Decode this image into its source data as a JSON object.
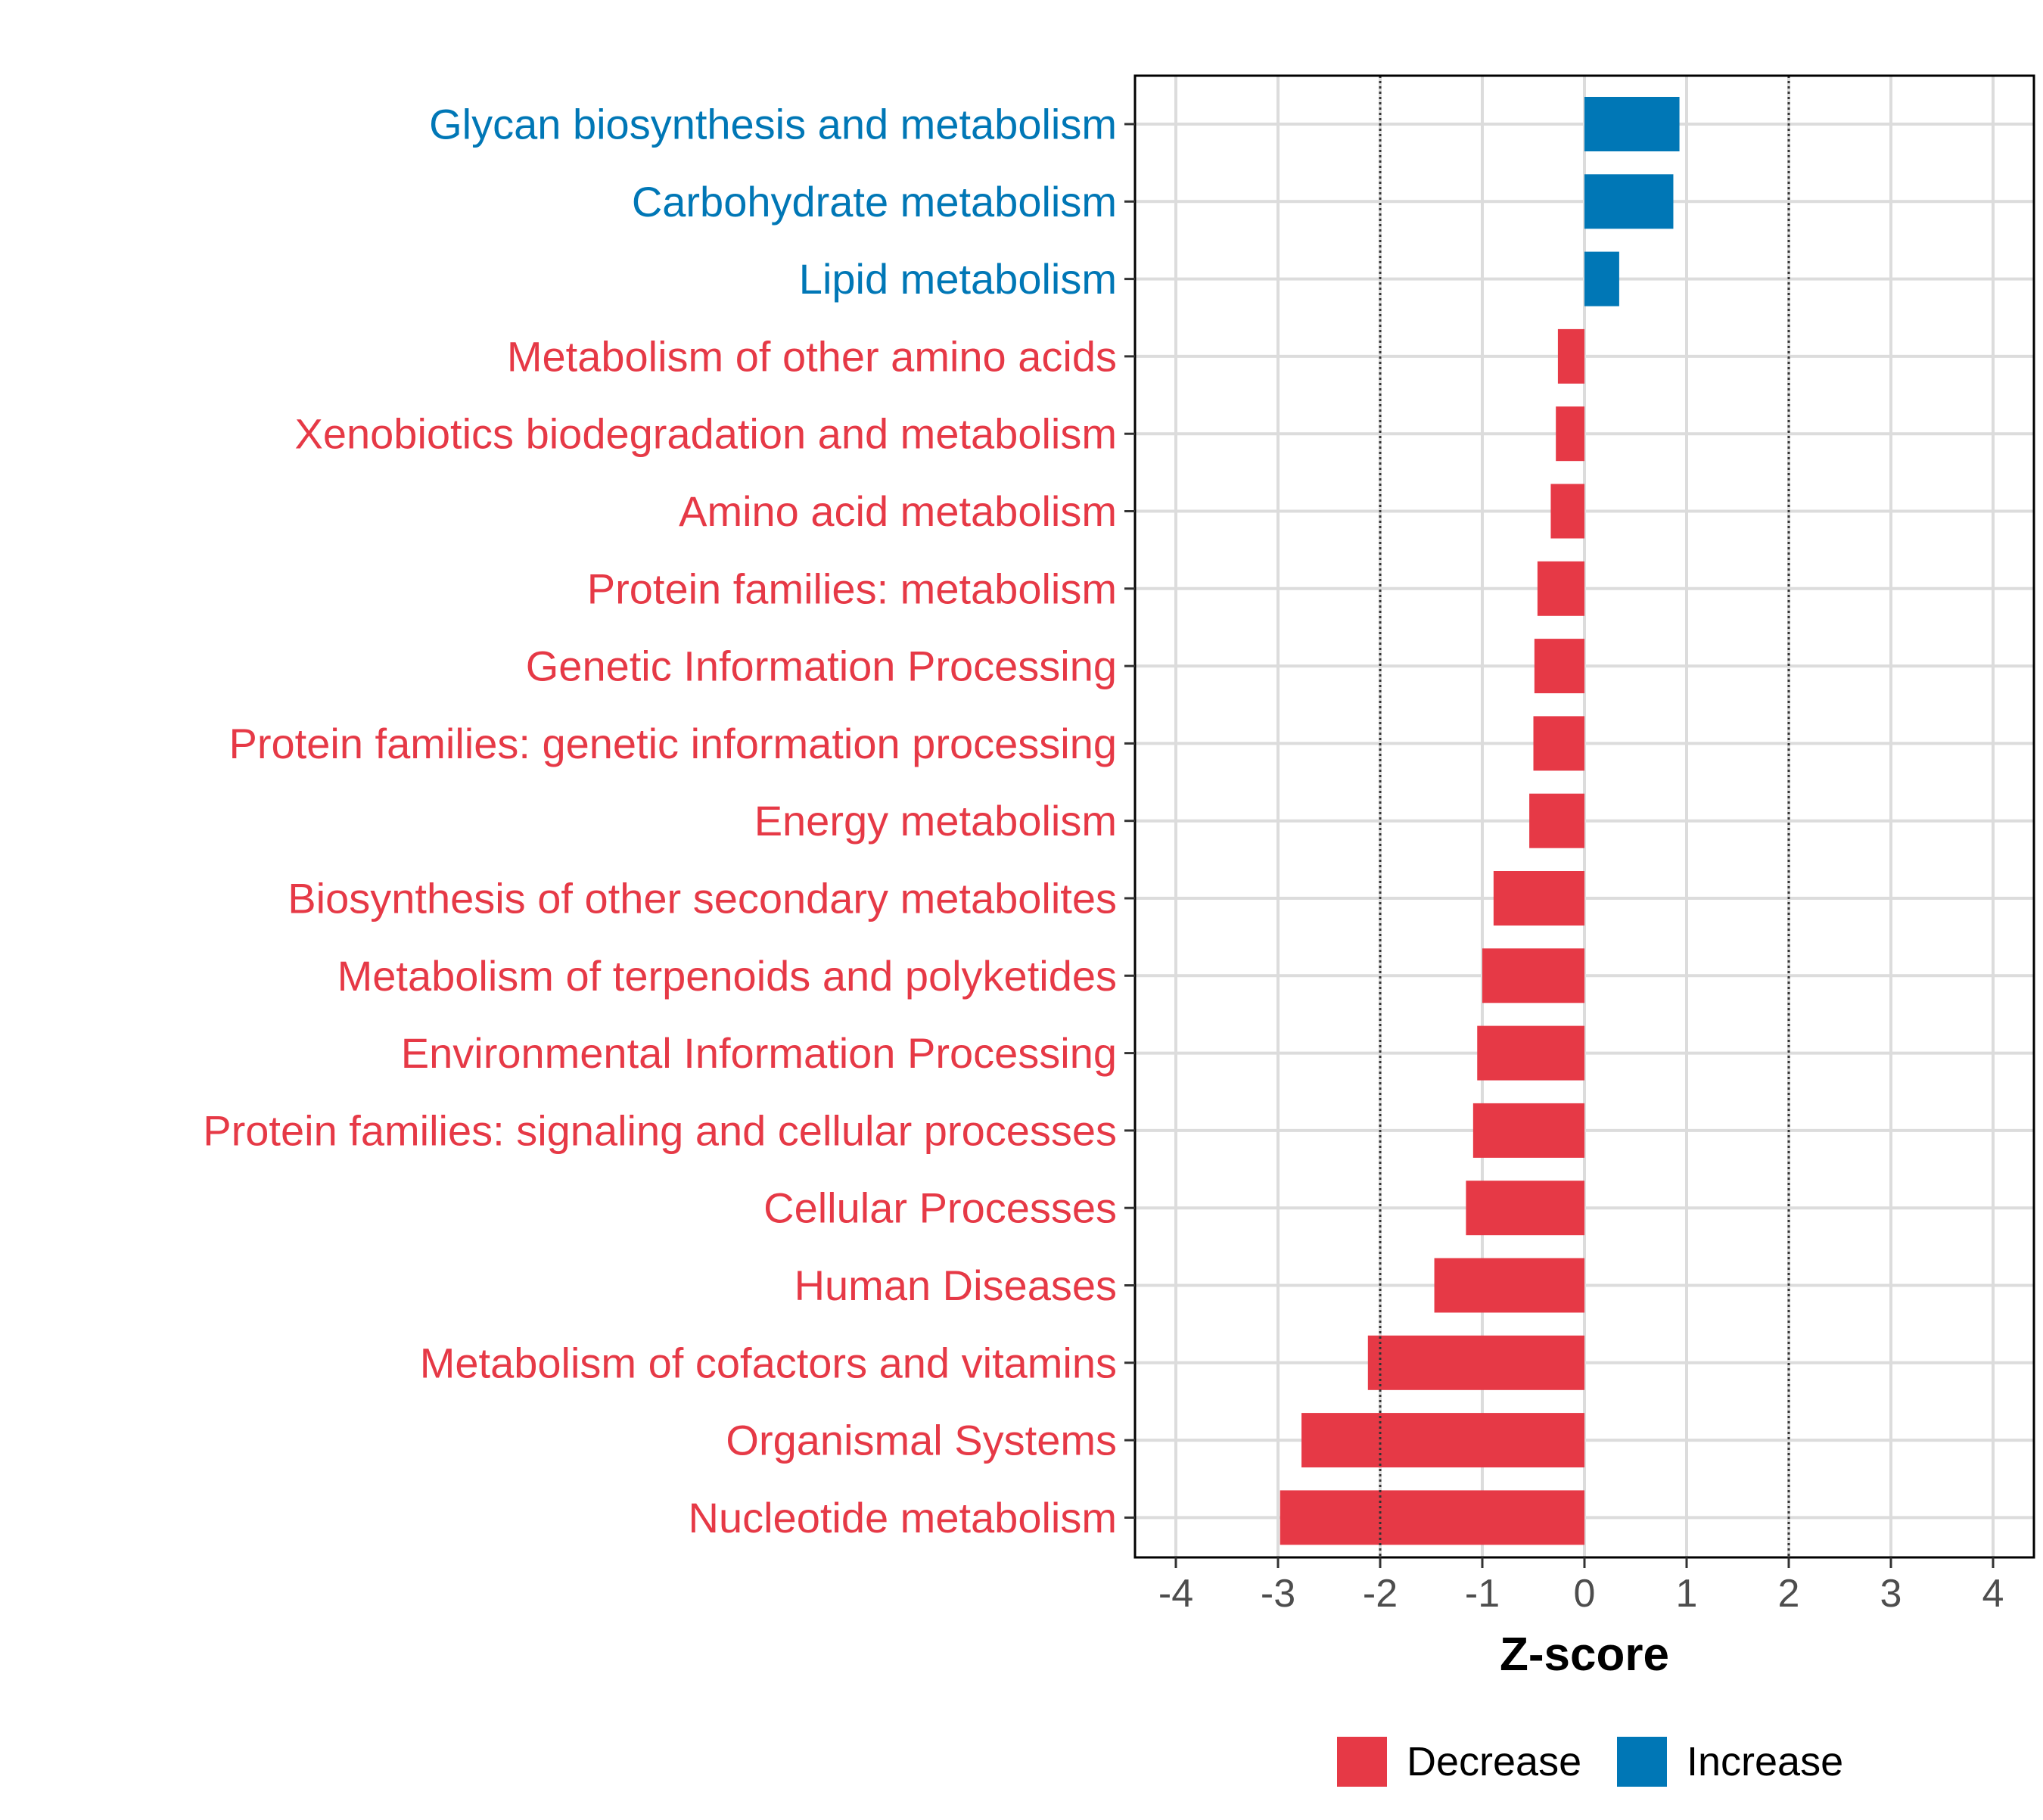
{
  "chart_data": {
    "type": "bar",
    "orientation": "horizontal",
    "title": "",
    "xlabel": "Z-score",
    "ylabel": "",
    "xlim": [
      -4.4,
      4.4
    ],
    "x_ticks": [
      "-4",
      "-3",
      "-2",
      "-1",
      "0",
      "1",
      "2",
      "3",
      "4"
    ],
    "x_tick_values": [
      -4,
      -3,
      -2,
      -1,
      0,
      1,
      2,
      3,
      4
    ],
    "reference_lines": [
      -2,
      2
    ],
    "grid": true,
    "categories": [
      "Glycan biosynthesis and metabolism",
      "Carbohydrate metabolism",
      "Lipid metabolism",
      "Metabolism of other amino acids",
      "Xenobiotics biodegradation and metabolism",
      "Amino acid metabolism",
      "Protein families: metabolism",
      "Genetic Information Processing",
      "Protein families: genetic information processing",
      "Energy metabolism",
      "Biosynthesis of other secondary metabolites",
      "Metabolism of terpenoids and polyketides",
      "Environmental Information Processing",
      "Protein families: signaling and cellular processes",
      "Cellular Processes",
      "Human Diseases",
      "Metabolism of cofactors and vitamins",
      "Organismal Systems",
      "Nucleotide metabolism"
    ],
    "values": [
      0.93,
      0.87,
      0.34,
      -0.26,
      -0.28,
      -0.33,
      -0.46,
      -0.49,
      -0.5,
      -0.54,
      -0.89,
      -1.0,
      -1.05,
      -1.09,
      -1.16,
      -1.47,
      -2.12,
      -2.77,
      -2.98
    ],
    "legend": {
      "position": "bottom",
      "entries": [
        {
          "label": "Decrease",
          "color": "#E63946"
        },
        {
          "label": "Increase",
          "color": "#0077B6"
        }
      ]
    },
    "colors": {
      "decrease": "#E63946",
      "increase": "#0077B6"
    }
  }
}
